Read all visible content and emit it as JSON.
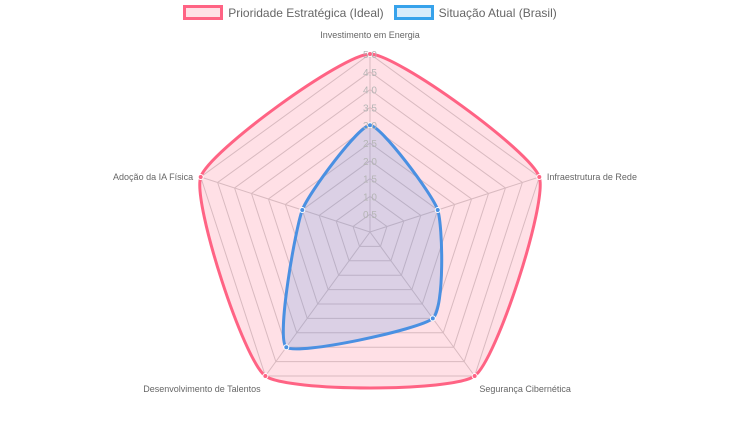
{
  "chart_data": {
    "type": "radar",
    "categories": [
      "Investimento em Energia",
      "Infraestrutura de Rede",
      "Segurança Cibernética",
      "Desenvolvimento de Talentos",
      "Adoção da IA Física"
    ],
    "series": [
      {
        "name": "Prioridade Estratégica (Ideal)",
        "values": [
          5,
          5,
          5,
          5,
          5
        ],
        "stroke": "#ff6384",
        "fill": "#ff638433"
      },
      {
        "name": "Situação Atual (Brasil)",
        "values": [
          3,
          2,
          3,
          4,
          2
        ],
        "stroke": "#4a90e2",
        "fill": "#4a90e233"
      }
    ],
    "r_range": [
      0,
      5
    ],
    "ticks": [
      "0.5",
      "1.0",
      "1.5",
      "2.0",
      "2.5",
      "3.0",
      "3.5",
      "4.0",
      "4.5",
      "5.0"
    ],
    "grid": true,
    "legend_position": "top"
  }
}
